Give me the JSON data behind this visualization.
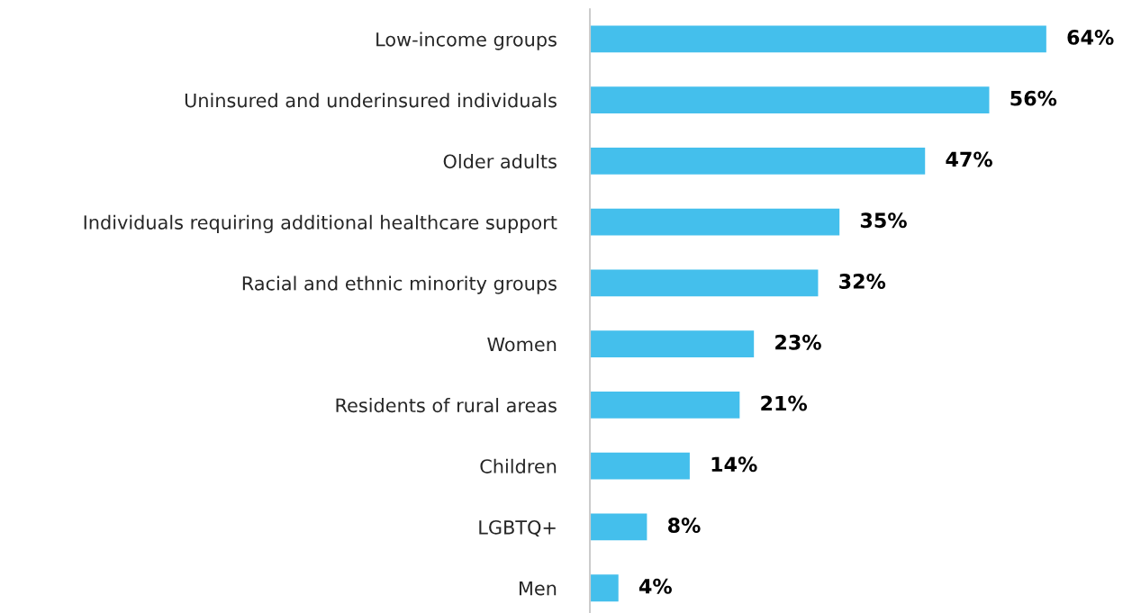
{
  "chart_data": {
    "type": "bar",
    "orientation": "horizontal",
    "categories": [
      "Low-income groups",
      "Uninsured and underinsured individuals",
      "Older adults",
      "Individuals requiring additional healthcare support",
      "Racial and ethnic minority groups",
      "Women",
      "Residents of rural areas",
      "Children",
      "LGBTQ+",
      "Men"
    ],
    "values": [
      64,
      56,
      47,
      35,
      32,
      23,
      21,
      14,
      8,
      4
    ],
    "value_labels": [
      "64%",
      "56%",
      "47%",
      "35%",
      "32%",
      "23%",
      "21%",
      "14%",
      "8%",
      "4%"
    ],
    "color": "#44bfec",
    "tick_labels": "y",
    "grid": false,
    "legend": false
  }
}
